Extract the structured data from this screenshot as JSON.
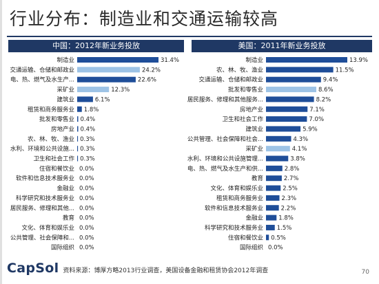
{
  "page": {
    "title": "行业分布：制造业和交通运输较高",
    "logo": "CapSol",
    "source": "资料来源：博厚方略2013行业调查，美国设备金融和租赁协会2012年调查",
    "page_number": "70"
  },
  "colors": {
    "dark": "#1f4e99",
    "light": "#9dc3e6"
  },
  "chart_data": [
    {
      "type": "bar",
      "orientation": "horizontal",
      "title": "中国：2012年新业务投放",
      "categories": [
        "制造业",
        "交通运输、仓储和邮政业",
        "电、热、燃气及水生产...",
        "采矿业",
        "建筑业",
        "租赁和商务服务业",
        "批发和零售业",
        "房地产业",
        "农、林、牧、渔业",
        "水利、环境和公共设施...",
        "卫生和社会工作",
        "住宿和餐饮业",
        "软件和信息技术服务业",
        "金融业",
        "科学研究和技术服务业",
        "居民服务、修理和其他...",
        "教育",
        "文化、体育和娱乐业",
        "公共管理、社会保障和...",
        "国际组织"
      ],
      "values": [
        31.4,
        24.2,
        22.6,
        12.3,
        6.1,
        1.8,
        0.4,
        0.4,
        0.3,
        0.3,
        0.3,
        0.0,
        0.0,
        0.0,
        0.0,
        0.0,
        0.0,
        0.0,
        0.0,
        0.0
      ],
      "value_labels": [
        "31.4%",
        "24.2%",
        "22.6%",
        "12.3%",
        "6.1%",
        "1.8%",
        "0.4%",
        "0.4%",
        "0.3%",
        "0.3%",
        "0.3%",
        "0.0%",
        "0.0%",
        "0.0%",
        "0.0%",
        "0.0%",
        "0.0%",
        "0.0%",
        "0.0%",
        "0.0%"
      ],
      "highlight": [
        "dark",
        "light",
        "dark",
        "light",
        "dark",
        "dark",
        "dark",
        "dark",
        "dark",
        "dark",
        "dark",
        "dark",
        "dark",
        "dark",
        "dark",
        "dark",
        "dark",
        "dark",
        "dark",
        "dark"
      ]
    },
    {
      "type": "bar",
      "orientation": "horizontal",
      "title": "美国：2011年新业务投放",
      "categories": [
        "制造业",
        "农、林、牧、渔业",
        "交通运输、仓储和邮政业",
        "批发和零售业",
        "居民服务、修理和其他服务...",
        "房地产业",
        "卫生和社会工作",
        "建筑业",
        "公共管理、社会保障和社会...",
        "采矿业",
        "水利、环境和公共设施管理...",
        "电、热、燃气及水生产和供...",
        "教育",
        "文化、体育和娱乐业",
        "租赁和商务服务业",
        "软件和信息技术服务业",
        "金融业",
        "科学研究和技术服务业",
        "住宿和餐饮业",
        "国际组织"
      ],
      "values": [
        13.9,
        11.5,
        9.4,
        8.6,
        8.2,
        7.1,
        7.0,
        5.9,
        4.3,
        4.1,
        3.8,
        2.8,
        2.7,
        2.5,
        2.3,
        2.2,
        1.8,
        1.5,
        0.5,
        0.0
      ],
      "value_labels": [
        "13.9%",
        "11.5%",
        "9.4%",
        "8.6%",
        "8.2%",
        "7.1%",
        "7.0%",
        "5.9%",
        "4.3%",
        "4.1%",
        "3.8%",
        "2.8%",
        "2.7%",
        "2.5%",
        "2.3%",
        "2.2%",
        "1.8%",
        "1.5%",
        "0.5%",
        "0.0%"
      ],
      "highlight": [
        "dark",
        "dark",
        "dark",
        "light",
        "dark",
        "dark",
        "dark",
        "dark",
        "dark",
        "light",
        "dark",
        "dark",
        "dark",
        "dark",
        "dark",
        "dark",
        "dark",
        "dark",
        "dark",
        "dark"
      ]
    }
  ]
}
